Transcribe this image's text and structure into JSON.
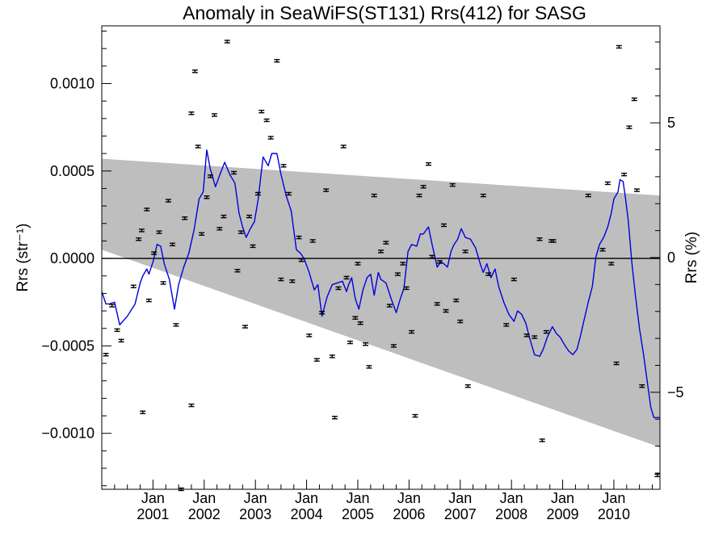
{
  "chart_data": {
    "type": "scatter",
    "title": "Anomaly in SeaWiFS(ST131) Rrs(412) for SASG",
    "ylabel_left": "Rrs (str⁻¹)",
    "ylabel_right": "Rrs (%)",
    "xlabel": "",
    "xlim": [
      2000.0,
      2010.9
    ],
    "ylim": [
      -0.00132,
      0.00133
    ],
    "ylim_right": [
      -8.6,
      8.6
    ],
    "x_ticks": [
      {
        "x": 2001.0,
        "month": "Jan",
        "year": "2001"
      },
      {
        "x": 2002.0,
        "month": "Jan",
        "year": "2002"
      },
      {
        "x": 2003.0,
        "month": "Jan",
        "year": "2003"
      },
      {
        "x": 2004.0,
        "month": "Jan",
        "year": "2004"
      },
      {
        "x": 2005.0,
        "month": "Jan",
        "year": "2005"
      },
      {
        "x": 2006.0,
        "month": "Jan",
        "year": "2006"
      },
      {
        "x": 2007.0,
        "month": "Jan",
        "year": "2007"
      },
      {
        "x": 2008.0,
        "month": "Jan",
        "year": "2008"
      },
      {
        "x": 2009.0,
        "month": "Jan",
        "year": "2009"
      },
      {
        "x": 2010.0,
        "month": "Jan",
        "year": "2010"
      }
    ],
    "y_ticks_left": [
      {
        "v": 0.001,
        "label": "0.0010"
      },
      {
        "v": 0.0005,
        "label": "0.0005"
      },
      {
        "v": 0.0,
        "label": "0.0000"
      },
      {
        "v": -0.0005,
        "label": "−0.0005"
      },
      {
        "v": -0.001,
        "label": "−0.0010"
      }
    ],
    "y_ticks_right": [
      {
        "v": 5,
        "label": "5"
      },
      {
        "v": 0,
        "label": "0"
      },
      {
        "v": -5,
        "label": "−5"
      }
    ],
    "zero_line": 0.0,
    "band": {
      "color": "#bebebe",
      "upper": [
        [
          2000.0,
          0.00057
        ],
        [
          2010.9,
          0.00036
        ]
      ],
      "lower": [
        [
          2000.0,
          5e-05
        ],
        [
          2010.9,
          -0.00108
        ]
      ]
    },
    "series": [
      {
        "kind": "points_with_errorbars",
        "color": "#000000",
        "err": 7e-06,
        "points": [
          [
            2000.08,
            -0.00055
          ],
          [
            2000.2,
            -0.00027
          ],
          [
            2000.3,
            -0.00041
          ],
          [
            2000.38,
            -0.00047
          ],
          [
            2000.62,
            -0.00016
          ],
          [
            2000.72,
            0.00011
          ],
          [
            2000.78,
            0.00016
          ],
          [
            2000.8,
            -0.00088
          ],
          [
            2000.88,
            0.00028
          ],
          [
            2000.92,
            -0.00024
          ],
          [
            2001.02,
            3e-05
          ],
          [
            2001.12,
            0.00015
          ],
          [
            2001.2,
            -0.00014
          ],
          [
            2001.3,
            0.00033
          ],
          [
            2001.38,
            8e-05
          ],
          [
            2001.45,
            -0.00038
          ],
          [
            2001.55,
            -0.00132
          ],
          [
            2001.62,
            0.00023
          ],
          [
            2001.75,
            0.00083
          ],
          [
            2001.75,
            -0.00084
          ],
          [
            2001.82,
            0.00107
          ],
          [
            2001.88,
            0.00064
          ],
          [
            2001.95,
            0.00014
          ],
          [
            2002.05,
            0.00035
          ],
          [
            2002.12,
            0.00047
          ],
          [
            2002.2,
            0.00082
          ],
          [
            2002.3,
            0.00017
          ],
          [
            2002.38,
            0.00024
          ],
          [
            2002.45,
            0.00124
          ],
          [
            2002.58,
            0.00049
          ],
          [
            2002.65,
            -7e-05
          ],
          [
            2002.72,
            0.00015
          ],
          [
            2002.8,
            -0.00039
          ],
          [
            2002.88,
            0.00024
          ],
          [
            2002.95,
            7e-05
          ],
          [
            2003.05,
            0.00037
          ],
          [
            2003.12,
            0.00084
          ],
          [
            2003.22,
            0.00079
          ],
          [
            2003.3,
            0.00069
          ],
          [
            2003.42,
            0.00113
          ],
          [
            2003.5,
            -0.00012
          ],
          [
            2003.55,
            0.00053
          ],
          [
            2003.65,
            0.00037
          ],
          [
            2003.72,
            -0.00013
          ],
          [
            2003.85,
            0.00012
          ],
          [
            2003.9,
            -1e-05
          ],
          [
            2004.05,
            -0.00044
          ],
          [
            2004.12,
            0.0001
          ],
          [
            2004.2,
            -0.00058
          ],
          [
            2004.3,
            -0.00031
          ],
          [
            2004.38,
            0.00039
          ],
          [
            2004.5,
            -0.00056
          ],
          [
            2004.55,
            -0.00091
          ],
          [
            2004.62,
            -0.00017
          ],
          [
            2004.72,
            0.00064
          ],
          [
            2004.78,
            -0.00011
          ],
          [
            2004.85,
            -0.00048
          ],
          [
            2004.95,
            -0.00034
          ],
          [
            2005.0,
            -3e-05
          ],
          [
            2005.05,
            -0.00037
          ],
          [
            2005.15,
            -0.00049
          ],
          [
            2005.22,
            -0.00062
          ],
          [
            2005.32,
            0.00036
          ],
          [
            2005.45,
            4e-05
          ],
          [
            2005.55,
            9e-05
          ],
          [
            2005.62,
            -0.00027
          ],
          [
            2005.7,
            -0.0005
          ],
          [
            2005.78,
            -9e-05
          ],
          [
            2005.88,
            -3e-05
          ],
          [
            2005.95,
            -0.00017
          ],
          [
            2006.05,
            -0.00042
          ],
          [
            2006.12,
            -0.0009
          ],
          [
            2006.2,
            0.00036
          ],
          [
            2006.28,
            0.00041
          ],
          [
            2006.38,
            0.00054
          ],
          [
            2006.45,
            1e-05
          ],
          [
            2006.55,
            -0.00026
          ],
          [
            2006.6,
            -2e-05
          ],
          [
            2006.68,
            0.00019
          ],
          [
            2006.72,
            -0.0003
          ],
          [
            2006.85,
            0.00042
          ],
          [
            2006.92,
            -0.00024
          ],
          [
            2007.0,
            -0.00036
          ],
          [
            2007.1,
            4e-05
          ],
          [
            2007.15,
            -0.00073
          ],
          [
            2007.45,
            0.00036
          ],
          [
            2007.55,
            -9e-05
          ],
          [
            2007.9,
            -0.00038
          ],
          [
            2008.05,
            -0.00012
          ],
          [
            2008.3,
            -0.00044
          ],
          [
            2008.45,
            -0.00045
          ],
          [
            2008.55,
            0.00011
          ],
          [
            2008.6,
            -0.00104
          ],
          [
            2008.68,
            -0.00042
          ],
          [
            2008.78,
            0.0001
          ],
          [
            2008.82,
            0.0001
          ],
          [
            2009.5,
            0.00036
          ],
          [
            2009.78,
            5e-05
          ],
          [
            2009.88,
            0.00043
          ],
          [
            2009.95,
            -3e-05
          ],
          [
            2010.05,
            -0.0006
          ],
          [
            2010.1,
            0.00121
          ],
          [
            2010.2,
            0.00048
          ],
          [
            2010.3,
            0.00075
          ],
          [
            2010.4,
            0.00091
          ],
          [
            2010.45,
            0.00039
          ],
          [
            2010.55,
            -0.00073
          ],
          [
            2010.85,
            -0.00124
          ]
        ]
      },
      {
        "kind": "line",
        "color": "#0000dd",
        "points": [
          [
            2000.0,
            -0.00019
          ],
          [
            2000.08,
            -0.00026
          ],
          [
            2000.15,
            -0.00026
          ],
          [
            2000.25,
            -0.00025
          ],
          [
            2000.35,
            -0.00038
          ],
          [
            2000.5,
            -0.00033
          ],
          [
            2000.65,
            -0.00026
          ],
          [
            2000.75,
            -0.00014
          ],
          [
            2000.8,
            -0.0001
          ],
          [
            2000.88,
            -6e-05
          ],
          [
            2000.92,
            -9e-05
          ],
          [
            2001.0,
            -2e-05
          ],
          [
            2001.08,
            8e-05
          ],
          [
            2001.15,
            7e-05
          ],
          [
            2001.22,
            -3e-05
          ],
          [
            2001.32,
            -0.00012
          ],
          [
            2001.42,
            -0.00029
          ],
          [
            2001.5,
            -0.00015
          ],
          [
            2001.6,
            -5e-05
          ],
          [
            2001.7,
            3e-05
          ],
          [
            2001.8,
            0.00016
          ],
          [
            2001.9,
            0.00034
          ],
          [
            2001.98,
            0.00038
          ],
          [
            2002.05,
            0.00062
          ],
          [
            2002.12,
            0.00051
          ],
          [
            2002.22,
            0.00041
          ],
          [
            2002.32,
            0.00049
          ],
          [
            2002.4,
            0.00055
          ],
          [
            2002.5,
            0.00048
          ],
          [
            2002.6,
            0.00043
          ],
          [
            2002.68,
            0.00026
          ],
          [
            2002.75,
            0.00018
          ],
          [
            2002.82,
            0.00012
          ],
          [
            2002.9,
            0.00017
          ],
          [
            2002.98,
            0.00021
          ],
          [
            2003.05,
            0.00033
          ],
          [
            2003.15,
            0.00058
          ],
          [
            2003.25,
            0.00053
          ],
          [
            2003.32,
            0.0006
          ],
          [
            2003.42,
            0.0006
          ],
          [
            2003.5,
            0.00048
          ],
          [
            2003.6,
            0.00036
          ],
          [
            2003.7,
            0.00027
          ],
          [
            2003.8,
            5e-05
          ],
          [
            2003.88,
            3e-05
          ],
          [
            2003.95,
            0.0
          ],
          [
            2004.05,
            -8e-05
          ],
          [
            2004.15,
            -0.00018
          ],
          [
            2004.22,
            -0.00015
          ],
          [
            2004.3,
            -0.00033
          ],
          [
            2004.4,
            -0.00022
          ],
          [
            2004.5,
            -0.00015
          ],
          [
            2004.6,
            -0.00014
          ],
          [
            2004.7,
            -0.00013
          ],
          [
            2004.78,
            -0.00019
          ],
          [
            2004.82,
            -0.00015
          ],
          [
            2004.88,
            -0.00011
          ],
          [
            2004.95,
            -0.00023
          ],
          [
            2005.02,
            -0.00029
          ],
          [
            2005.1,
            -0.00018
          ],
          [
            2005.18,
            -0.00011
          ],
          [
            2005.25,
            -9e-05
          ],
          [
            2005.32,
            -0.00021
          ],
          [
            2005.4,
            -8e-05
          ],
          [
            2005.45,
            -0.00012
          ],
          [
            2005.55,
            -0.00014
          ],
          [
            2005.65,
            -0.00023
          ],
          [
            2005.75,
            -0.00031
          ],
          [
            2005.82,
            -0.00024
          ],
          [
            2005.9,
            -0.00017
          ],
          [
            2005.98,
            4e-05
          ],
          [
            2006.05,
            8e-05
          ],
          [
            2006.15,
            7e-05
          ],
          [
            2006.22,
            0.00014
          ],
          [
            2006.28,
            0.00014
          ],
          [
            2006.38,
            0.00018
          ],
          [
            2006.45,
            8e-05
          ],
          [
            2006.55,
            -5e-05
          ],
          [
            2006.62,
            -2e-05
          ],
          [
            2006.68,
            -3e-05
          ],
          [
            2006.75,
            -5e-05
          ],
          [
            2006.82,
            4e-05
          ],
          [
            2006.88,
            8e-05
          ],
          [
            2006.95,
            0.00011
          ],
          [
            2007.02,
            0.00017
          ],
          [
            2007.1,
            0.00012
          ],
          [
            2007.2,
            0.00011
          ],
          [
            2007.3,
            6e-05
          ],
          [
            2007.4,
            -4e-05
          ],
          [
            2007.45,
            -8e-05
          ],
          [
            2007.52,
            -3e-05
          ],
          [
            2007.6,
            -0.00011
          ],
          [
            2007.68,
            -6e-05
          ],
          [
            2007.75,
            -0.00016
          ],
          [
            2007.85,
            -0.00025
          ],
          [
            2007.95,
            -0.00032
          ],
          [
            2008.05,
            -0.00036
          ],
          [
            2008.12,
            -0.0003
          ],
          [
            2008.2,
            -0.00032
          ],
          [
            2008.28,
            -0.00037
          ],
          [
            2008.35,
            -0.00045
          ],
          [
            2008.45,
            -0.00055
          ],
          [
            2008.55,
            -0.00056
          ],
          [
            2008.62,
            -0.00052
          ],
          [
            2008.7,
            -0.00045
          ],
          [
            2008.8,
            -0.00039
          ],
          [
            2008.88,
            -0.00043
          ],
          [
            2008.95,
            -0.00045
          ],
          [
            2009.05,
            -0.0005
          ],
          [
            2009.12,
            -0.00053
          ],
          [
            2009.2,
            -0.00055
          ],
          [
            2009.28,
            -0.00052
          ],
          [
            2009.35,
            -0.00044
          ],
          [
            2009.42,
            -0.00035
          ],
          [
            2009.5,
            -0.00025
          ],
          [
            2009.58,
            -0.00016
          ],
          [
            2009.65,
            1e-05
          ],
          [
            2009.72,
            8e-05
          ],
          [
            2009.8,
            0.00012
          ],
          [
            2009.88,
            0.00018
          ],
          [
            2009.95,
            0.00026
          ],
          [
            2010.0,
            0.00034
          ],
          [
            2010.08,
            0.00038
          ],
          [
            2010.12,
            0.00045
          ],
          [
            2010.18,
            0.00044
          ],
          [
            2010.22,
            0.00036
          ],
          [
            2010.28,
            0.00022
          ],
          [
            2010.35,
            -2e-05
          ],
          [
            2010.42,
            -0.00021
          ],
          [
            2010.5,
            -0.0004
          ],
          [
            2010.58,
            -0.00055
          ],
          [
            2010.65,
            -0.0007
          ],
          [
            2010.72,
            -0.00085
          ],
          [
            2010.78,
            -0.00091
          ],
          [
            2010.85,
            -0.00091
          ],
          [
            2010.9,
            -0.00091
          ]
        ]
      }
    ]
  }
}
